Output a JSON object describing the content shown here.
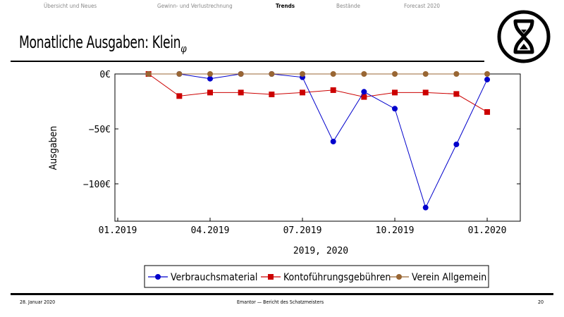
{
  "nav": {
    "items": [
      "Übersicht und Neues",
      "Gewinn- und Verlustrechnung",
      "Trends",
      "Bestände",
      "Forecast 2020"
    ],
    "active": 2
  },
  "header": {
    "title": "Monatliche Ausgaben: Klein",
    "title_sub": "φ"
  },
  "footer": {
    "date": "28. Januar 2020",
    "center": "Emantor — Bericht des Schatzmeisters",
    "page": "20"
  },
  "chart_data": {
    "type": "line",
    "title": "",
    "xlabel": "2019, 2020",
    "ylabel": "Ausgaben",
    "x": [
      "02.2019",
      "03.2019",
      "04.2019",
      "05.2019",
      "06.2019",
      "07.2019",
      "08.2019",
      "09.2019",
      "10.2019",
      "11.2019",
      "12.2019",
      "01.2020"
    ],
    "xticks": [
      "01.2019",
      "04.2019",
      "07.2019",
      "10.2019",
      "01.2020"
    ],
    "yticks": [
      {
        "value": 0,
        "label": "0€"
      },
      {
        "value": -50,
        "label": "−50€"
      },
      {
        "value": -100,
        "label": "−100€"
      }
    ],
    "ylim": [
      -134,
      0
    ],
    "grid": false,
    "legend": "bottom",
    "series": [
      {
        "name": "Verbrauchsmaterial",
        "color": "#0000cc",
        "marker": "circle",
        "values": [
          null,
          0,
          -4.3,
          0,
          0,
          -3,
          -61.5,
          -16.2,
          -31.6,
          -121.6,
          -64.1,
          -5.1
        ]
      },
      {
        "name": "Kontoführungsgebühren",
        "color": "#cc0000",
        "marker": "square",
        "values": [
          0,
          -20.1,
          -16.9,
          -16.9,
          -18.6,
          -16.9,
          -14.7,
          -20.9,
          -16.9,
          -16.9,
          -18.2,
          -34.6
        ]
      },
      {
        "name": "Verein Allgemein",
        "color": "#996633",
        "marker": "circle",
        "values": [
          0,
          0,
          0,
          0,
          0,
          0,
          0,
          0,
          0,
          0,
          0,
          0
        ]
      }
    ]
  }
}
